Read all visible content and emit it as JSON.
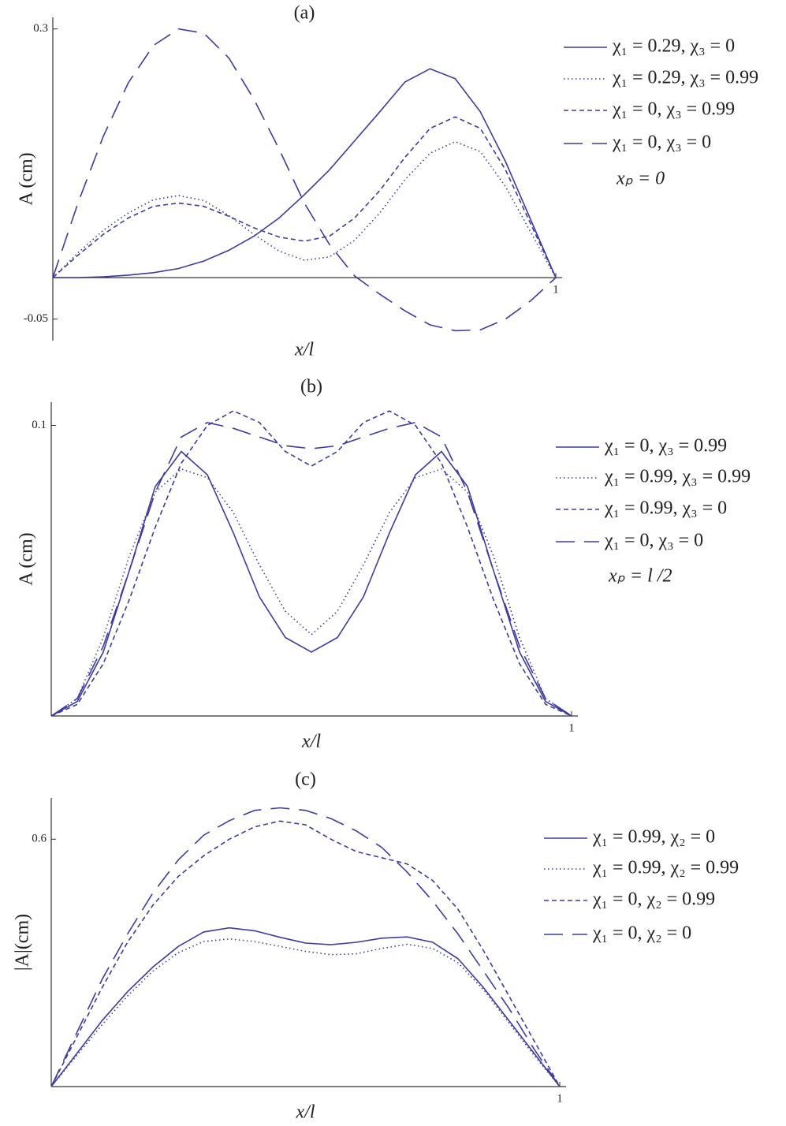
{
  "chart_data": [
    {
      "type": "line",
      "title": "(a)",
      "x_label": "x/l",
      "y_label": "A (cm)",
      "annotation": "xₚ = 0",
      "x": [
        0,
        0.05,
        0.1,
        0.15,
        0.2,
        0.25,
        0.3,
        0.35,
        0.4,
        0.45,
        0.5,
        0.55,
        0.6,
        0.65,
        0.7,
        0.75,
        0.8,
        0.85,
        0.9,
        0.95,
        1
      ],
      "xlim": [
        0,
        1
      ],
      "xticks": [
        1
      ],
      "ylim": [
        -0.076,
        0.314
      ],
      "yticks": [
        -0.05,
        0.3
      ],
      "series": [
        {
          "name": "χ₁ = 0.29, χ₃ = 0",
          "color": "#3c3ca0",
          "style": "solid",
          "values": [
            0,
            0,
            0.001,
            0.003,
            0.006,
            0.011,
            0.02,
            0.033,
            0.05,
            0.072,
            0.1,
            0.13,
            0.165,
            0.2,
            0.236,
            0.252,
            0.24,
            0.2,
            0.14,
            0.07,
            0
          ]
        },
        {
          "name": "χ₁ = 0.29, χ₃ = 0.99",
          "color": "#3c3ca0",
          "style": "dotted",
          "values": [
            0,
            0.03,
            0.057,
            0.078,
            0.094,
            0.099,
            0.093,
            0.075,
            0.052,
            0.032,
            0.021,
            0.025,
            0.045,
            0.078,
            0.118,
            0.15,
            0.164,
            0.152,
            0.11,
            0.055,
            0
          ]
        },
        {
          "name": "χ₁ = 0, χ₃ = 0.99",
          "color": "#3c3ca0",
          "style": "dashed",
          "values": [
            0,
            0.027,
            0.052,
            0.072,
            0.086,
            0.09,
            0.086,
            0.074,
            0.06,
            0.049,
            0.044,
            0.05,
            0.072,
            0.105,
            0.145,
            0.18,
            0.194,
            0.18,
            0.13,
            0.065,
            0
          ]
        },
        {
          "name": "χ₁ = 0, χ₃ = 0",
          "color": "#3c3ca0",
          "style": "longdash",
          "values": [
            0,
            0.09,
            0.17,
            0.235,
            0.28,
            0.3,
            0.295,
            0.265,
            0.215,
            0.155,
            0.09,
            0.04,
            0.002,
            -0.02,
            -0.04,
            -0.057,
            -0.064,
            -0.063,
            -0.05,
            -0.028,
            0
          ]
        }
      ]
    },
    {
      "type": "line",
      "title": "(b)",
      "x_label": "x/l",
      "y_label": "A (cm)",
      "annotation": "xₚ = l /2",
      "x": [
        0,
        0.05,
        0.1,
        0.15,
        0.2,
        0.25,
        0.3,
        0.35,
        0.4,
        0.45,
        0.5,
        0.55,
        0.6,
        0.65,
        0.7,
        0.75,
        0.8,
        0.85,
        0.9,
        0.95,
        1
      ],
      "xlim": [
        0,
        1
      ],
      "xticks": [
        1
      ],
      "ylim": [
        0,
        0.108
      ],
      "yticks": [
        0.1
      ],
      "series": [
        {
          "name": "χ₁ = 0, χ₃ = 0.99",
          "color": "#3c3ca0",
          "style": "solid",
          "values": [
            0,
            0.005,
            0.022,
            0.05,
            0.079,
            0.091,
            0.083,
            0.063,
            0.041,
            0.027,
            0.022,
            0.027,
            0.041,
            0.063,
            0.083,
            0.091,
            0.079,
            0.05,
            0.022,
            0.005,
            0
          ]
        },
        {
          "name": "χ₁ = 0.99, χ₃ = 0.99",
          "color": "#3c3ca0",
          "style": "dotted",
          "values": [
            0,
            0.006,
            0.027,
            0.055,
            0.077,
            0.085,
            0.082,
            0.07,
            0.052,
            0.036,
            0.028,
            0.036,
            0.052,
            0.07,
            0.082,
            0.085,
            0.077,
            0.055,
            0.027,
            0.006,
            0
          ]
        },
        {
          "name": "χ₁ = 0.99, χ₃ = 0",
          "color": "#3c3ca0",
          "style": "dashed",
          "values": [
            0,
            0.004,
            0.018,
            0.04,
            0.065,
            0.087,
            0.1,
            0.105,
            0.101,
            0.091,
            0.086,
            0.091,
            0.101,
            0.105,
            0.1,
            0.087,
            0.065,
            0.04,
            0.018,
            0.004,
            0
          ]
        },
        {
          "name": "χ₁ = 0, χ₃ = 0",
          "color": "#3c3ca0",
          "style": "longdash",
          "values": [
            0,
            0.006,
            0.024,
            0.05,
            0.077,
            0.096,
            0.101,
            0.099,
            0.096,
            0.093,
            0.092,
            0.093,
            0.096,
            0.099,
            0.101,
            0.096,
            0.077,
            0.05,
            0.024,
            0.006,
            0
          ]
        }
      ]
    },
    {
      "type": "line",
      "title": "(c)",
      "x_label": "x/l",
      "y_label": "|A|(cm)",
      "x": [
        0,
        0.05,
        0.1,
        0.15,
        0.2,
        0.25,
        0.3,
        0.35,
        0.4,
        0.45,
        0.5,
        0.55,
        0.6,
        0.65,
        0.7,
        0.75,
        0.8,
        0.85,
        0.9,
        0.95,
        1
      ],
      "xlim": [
        0,
        1
      ],
      "xticks": [
        1
      ],
      "ylim": [
        0,
        0.7
      ],
      "yticks": [
        0.6
      ],
      "series": [
        {
          "name": "χ₁ = 0.99, χ₂ = 0",
          "color": "#3c3ca0",
          "style": "solid",
          "values": [
            0,
            0.08,
            0.16,
            0.23,
            0.29,
            0.34,
            0.375,
            0.385,
            0.378,
            0.362,
            0.348,
            0.344,
            0.35,
            0.36,
            0.363,
            0.35,
            0.31,
            0.24,
            0.16,
            0.08,
            0
          ]
        },
        {
          "name": "χ₁ = 0.99, χ₂ = 0.99",
          "color": "#3c3ca0",
          "style": "dotted",
          "values": [
            0,
            0.075,
            0.15,
            0.22,
            0.28,
            0.325,
            0.352,
            0.358,
            0.352,
            0.34,
            0.328,
            0.32,
            0.322,
            0.335,
            0.345,
            0.335,
            0.3,
            0.235,
            0.155,
            0.075,
            0
          ]
        },
        {
          "name": "χ₁ = 0, χ₂ = 0.99",
          "color": "#3c3ca0",
          "style": "dashed",
          "values": [
            0,
            0.12,
            0.24,
            0.35,
            0.44,
            0.51,
            0.56,
            0.6,
            0.63,
            0.644,
            0.635,
            0.6,
            0.57,
            0.555,
            0.54,
            0.5,
            0.43,
            0.33,
            0.22,
            0.11,
            0
          ]
        },
        {
          "name": "χ₁ = 0, χ₂ = 0",
          "color": "#3c3ca0",
          "style": "longdash",
          "values": [
            0,
            0.13,
            0.26,
            0.37,
            0.47,
            0.55,
            0.61,
            0.645,
            0.67,
            0.676,
            0.67,
            0.65,
            0.62,
            0.58,
            0.52,
            0.45,
            0.37,
            0.28,
            0.19,
            0.09,
            0
          ]
        }
      ]
    }
  ]
}
